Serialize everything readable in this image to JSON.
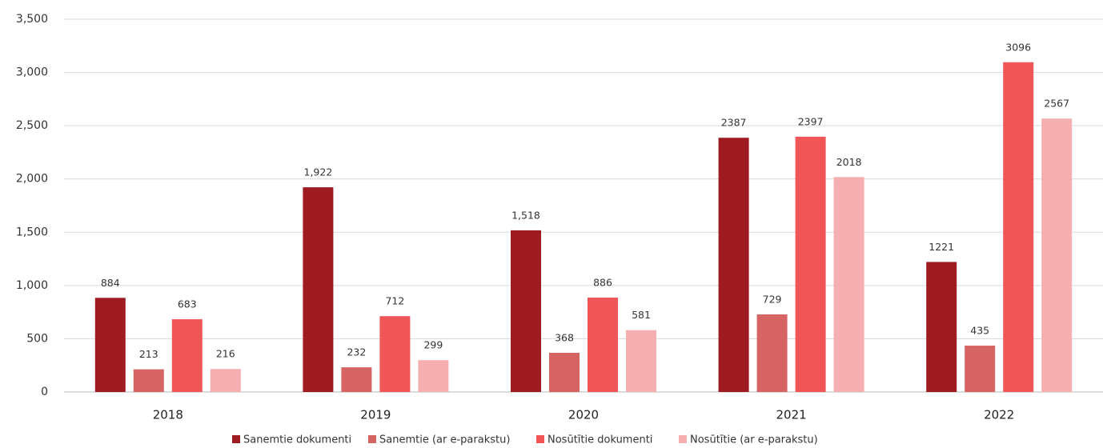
{
  "chart_data": {
    "type": "bar",
    "categories": [
      "2018",
      "2019",
      "2020",
      "2021",
      "2022"
    ],
    "series": [
      {
        "name": "Sanemtie dokumenti",
        "color": "#9e1b22",
        "values": [
          884,
          1922,
          1518,
          2387,
          1221
        ],
        "value_labels": [
          "884",
          "1,922",
          "1,518",
          "2387",
          "1221"
        ]
      },
      {
        "name": "Sanemtie (ar e-parakstu)",
        "color": "#d56463",
        "values": [
          213,
          232,
          368,
          729,
          435
        ]
      },
      {
        "name": "Nosūtītie dokumenti",
        "color": "#f05558",
        "values": [
          683,
          712,
          886,
          2397,
          3096
        ]
      },
      {
        "name": "Nosūtītie (ar e-parakstu)",
        "color": "#f6afb0",
        "values": [
          216,
          299,
          581,
          2018,
          2567
        ]
      }
    ],
    "ylim": [
      0,
      3500
    ],
    "yticks": [
      0,
      500,
      {
        "value": 1000,
        "label": "1,000"
      },
      {
        "value": 1500,
        "label": "1,500"
      },
      {
        "value": 2000,
        "label": "2,000"
      },
      {
        "value": 2500,
        "label": "2,500"
      },
      {
        "value": 3000,
        "label": "3,000"
      },
      {
        "value": 3500,
        "label": "3,500"
      }
    ],
    "grid": true
  }
}
